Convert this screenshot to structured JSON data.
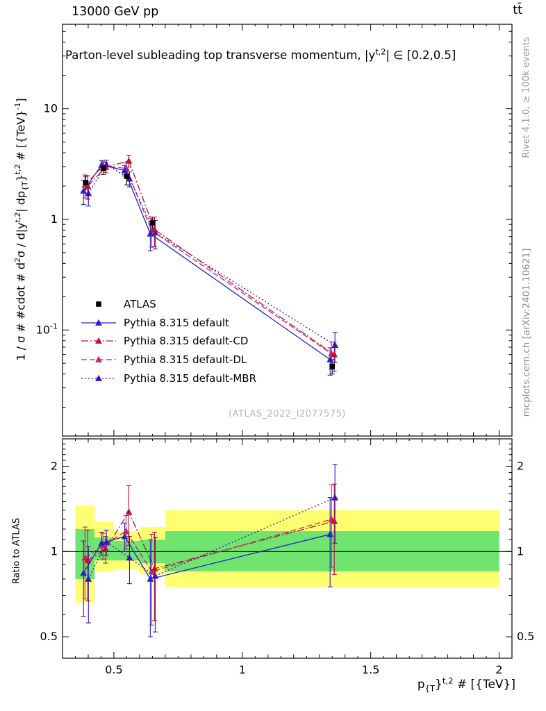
{
  "header": {
    "left": "13000 GeV pp",
    "right": "tt̄"
  },
  "side_notes": {
    "top_right": "Rivet 4.1.0, ≥ 100k events",
    "bottom_right": "mcplots.cern.ch [arXiv:2401.10621]"
  },
  "watermark": "(ATLAS_2022_I2077575)",
  "labels": {
    "ratio_y_label": "Ratio to ATLAS",
    "title_segments": [
      {
        "t": "Parton-level subleading top transverse momentum, |y"
      },
      {
        "t": "t,2",
        "s": "sup"
      },
      {
        "t": "| ∈ [0.2,0.5]"
      }
    ],
    "y_axis_segments": [
      {
        "t": "1 / σ # #cdot # d"
      },
      {
        "t": "2",
        "s": "sup"
      },
      {
        "t": "σ / d|y"
      },
      {
        "t": "t,2",
        "s": "sup"
      },
      {
        "t": "| dp"
      },
      {
        "t": "{T",
        "s": "sub"
      },
      {
        "t": "}"
      },
      {
        "t": "t,2",
        "s": "sup"
      },
      {
        "t": " # [{TeV}"
      },
      {
        "t": "-1",
        "s": "sup"
      },
      {
        "t": "]"
      }
    ],
    "x_axis_segments": [
      {
        "t": "p"
      },
      {
        "t": "{T",
        "s": "sub"
      },
      {
        "t": "}"
      },
      {
        "t": "t,2",
        "s": "sup"
      },
      {
        "t": " # [{TeV}]"
      }
    ]
  },
  "chart_data": {
    "type": "line",
    "title": "Parton-level subleading top transverse momentum, |y^{t,2}| in [0.2,0.5]",
    "xlabel": "p_{T}^{t,2} [TeV]",
    "ylabel": "1/sigma d^2 sigma / d|y^{t,2}| dp_{T}^{t,2} [TeV^-1]",
    "x_lim": [
      0.3,
      2.05
    ],
    "x_major_ticks": [
      0.5,
      1,
      1.5,
      2
    ],
    "x": [
      0.39,
      0.46,
      0.55,
      0.65,
      1.35
    ],
    "main_panel": {
      "y_log": true,
      "y_lim": [
        0.011,
        58
      ],
      "y_major_ticks": [
        0.1,
        1,
        10
      ]
    },
    "ratio_panel": {
      "y_log": true,
      "y_lim": [
        0.42,
        2.5
      ],
      "y_major_ticks": [
        0.5,
        1,
        2
      ],
      "reference_line": 1,
      "band_colors": {
        "outer": "#ffff72",
        "inner": "#6fe46f"
      },
      "bands": [
        {
          "x0": 0.35,
          "x1": 0.425,
          "yellow": [
            0.66,
            1.45
          ],
          "green": [
            0.8,
            1.2
          ]
        },
        {
          "x0": 0.425,
          "x1": 0.5,
          "yellow": [
            0.85,
            1.27
          ],
          "green": [
            0.93,
            1.12
          ]
        },
        {
          "x0": 0.5,
          "x1": 0.6,
          "yellow": [
            0.86,
            1.18
          ],
          "green": [
            0.93,
            1.09
          ]
        },
        {
          "x0": 0.6,
          "x1": 0.7,
          "yellow": [
            0.83,
            1.22
          ],
          "green": [
            0.91,
            1.1
          ]
        },
        {
          "x0": 0.7,
          "x1": 2.0,
          "yellow": [
            0.75,
            1.4
          ],
          "green": [
            0.85,
            1.18
          ]
        }
      ]
    },
    "series": [
      {
        "name": "ATLAS",
        "color": "#000000",
        "marker": "square",
        "line": "none",
        "values": [
          2.15,
          2.9,
          2.45,
          0.93,
          0.047
        ],
        "errors": [
          0.3,
          0.35,
          0.4,
          0.12,
          0.007
        ]
      },
      {
        "name": "Pythia 8.315 default",
        "color": "#2323cb",
        "marker": "triangle",
        "line": "solid",
        "values": [
          1.81,
          3.1,
          2.77,
          0.74,
          0.054
        ],
        "errors": [
          0.45,
          0.3,
          0.3,
          0.22,
          0.015
        ],
        "ratio": [
          0.84,
          1.07,
          1.13,
          0.8,
          1.15
        ],
        "ratio_errors": [
          0.25,
          0.1,
          0.13,
          0.3,
          0.4
        ]
      },
      {
        "name": "Pythia 8.315 default-CD",
        "color": "#bb1133",
        "marker": "triangle",
        "line": "dashdot",
        "values": [
          2.0,
          2.96,
          3.38,
          0.81,
          0.06
        ],
        "errors": [
          0.48,
          0.3,
          0.42,
          0.24,
          0.018
        ],
        "ratio": [
          0.93,
          1.02,
          1.38,
          0.87,
          1.28
        ],
        "ratio_errors": [
          0.26,
          0.11,
          0.33,
          0.3,
          0.45
        ]
      },
      {
        "name": "Pythia 8.315 default-DL",
        "color": "#cc2266",
        "marker": "triangle",
        "line": "dashed",
        "values": [
          2.04,
          3.05,
          2.89,
          0.79,
          0.061
        ],
        "errors": [
          0.48,
          0.3,
          0.34,
          0.23,
          0.017
        ],
        "ratio": [
          0.95,
          1.05,
          1.18,
          0.85,
          1.3
        ],
        "ratio_errors": [
          0.27,
          0.11,
          0.16,
          0.3,
          0.42
        ]
      },
      {
        "name": "Pythia 8.315 default-MBR",
        "color": "#3d0fbe",
        "marker": "triangle",
        "line": "dotted",
        "values": [
          1.72,
          3.13,
          2.33,
          0.76,
          0.073
        ],
        "errors": [
          0.4,
          0.3,
          0.36,
          0.22,
          0.022
        ],
        "ratio": [
          0.8,
          1.08,
          0.95,
          0.82,
          1.55
        ],
        "ratio_errors": [
          0.24,
          0.11,
          0.18,
          0.3,
          0.48
        ]
      }
    ]
  }
}
